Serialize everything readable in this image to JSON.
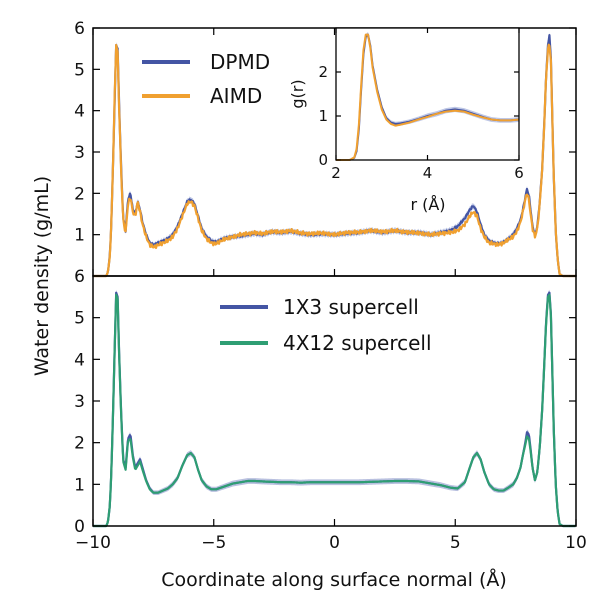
{
  "figure": {
    "xlabel": "Coordinate along surface normal (Å)",
    "ylabel": "Water density (g/mL)"
  },
  "chart_data": [
    {
      "type": "line",
      "panel": "top",
      "xlim": [
        -10,
        10
      ],
      "ylim": [
        0,
        6
      ],
      "x_ticks": [
        -10,
        -5,
        0,
        5,
        10
      ],
      "x_tick_labels": [],
      "y_ticks": [
        1,
        2,
        3,
        4,
        5,
        6
      ],
      "y_tick_labels": [
        "1",
        "2",
        "3",
        "4",
        "5",
        "6"
      ],
      "legend_position": "upper-left",
      "series": [
        {
          "name": "DPMD",
          "color": "#4455a4",
          "band_color": "#8a9ad2",
          "noise": 0.03,
          "x": [
            -10,
            -9.45,
            -9.38,
            -9.3,
            -9.24,
            -9.18,
            -9.1,
            -9.04,
            -8.98,
            -8.92,
            -8.84,
            -8.75,
            -8.65,
            -8.55,
            -8.45,
            -8.35,
            -8.25,
            -8.15,
            -8.05,
            -7.95,
            -7.8,
            -7.65,
            -7.5,
            -7.3,
            -7.1,
            -6.9,
            -6.7,
            -6.5,
            -6.3,
            -6.1,
            -5.95,
            -5.8,
            -5.65,
            -5.5,
            -5.3,
            -5.1,
            -4.9,
            -4.7,
            -4.5,
            -4.2,
            -3.9,
            -3.6,
            -3.3,
            -3.0,
            -2.6,
            -2.2,
            -1.8,
            -1.4,
            -1.0,
            -0.5,
            0,
            0.5,
            1.0,
            1.5,
            2.0,
            2.5,
            3.0,
            3.5,
            4.0,
            4.4,
            4.8,
            5.1,
            5.4,
            5.6,
            5.75,
            5.9,
            6.05,
            6.2,
            6.4,
            6.6,
            6.8,
            7.0,
            7.2,
            7.4,
            7.55,
            7.7,
            7.8,
            7.9,
            7.97,
            8.05,
            8.12,
            8.2,
            8.3,
            8.4,
            8.5,
            8.6,
            8.68,
            8.76,
            8.84,
            8.9,
            8.96,
            9.02,
            9.08,
            9.16,
            9.24,
            9.32,
            9.45,
            10
          ],
          "y": [
            0,
            0,
            0.1,
            0.5,
            1.3,
            2.5,
            4.3,
            5.6,
            5.5,
            4.2,
            2.7,
            1.4,
            1.1,
            1.85,
            2.0,
            1.6,
            1.5,
            1.8,
            1.6,
            1.3,
            1.0,
            0.8,
            0.75,
            0.8,
            0.85,
            0.9,
            1.0,
            1.2,
            1.5,
            1.8,
            1.85,
            1.75,
            1.45,
            1.15,
            0.95,
            0.85,
            0.82,
            0.88,
            0.92,
            0.95,
            0.97,
            1.0,
            1.03,
            1.0,
            1.07,
            1.05,
            1.08,
            1.03,
            1.0,
            1.02,
            1.0,
            1.03,
            1.05,
            1.1,
            1.05,
            1.1,
            1.05,
            1.05,
            1.0,
            1.05,
            1.1,
            1.2,
            1.4,
            1.6,
            1.7,
            1.55,
            1.25,
            1.0,
            0.85,
            0.8,
            0.78,
            0.82,
            0.9,
            1.0,
            1.15,
            1.35,
            1.6,
            1.9,
            2.1,
            1.95,
            1.6,
            1.2,
            1.0,
            1.2,
            1.8,
            2.6,
            3.6,
            4.8,
            5.6,
            5.8,
            5.3,
            3.8,
            2.4,
            1.1,
            0.4,
            0.05,
            0,
            0
          ]
        },
        {
          "name": "AIMD",
          "color": "#f0a030",
          "noise": 0.05,
          "x": [
            -10,
            -9.45,
            -9.38,
            -9.3,
            -9.24,
            -9.18,
            -9.1,
            -9.04,
            -8.98,
            -8.92,
            -8.84,
            -8.75,
            -8.65,
            -8.55,
            -8.45,
            -8.35,
            -8.25,
            -8.15,
            -8.05,
            -7.95,
            -7.8,
            -7.65,
            -7.5,
            -7.3,
            -7.1,
            -6.9,
            -6.7,
            -6.5,
            -6.3,
            -6.1,
            -5.95,
            -5.8,
            -5.65,
            -5.5,
            -5.3,
            -5.1,
            -4.9,
            -4.7,
            -4.5,
            -4.2,
            -3.9,
            -3.6,
            -3.3,
            -3.0,
            -2.6,
            -2.2,
            -1.8,
            -1.4,
            -1.0,
            -0.5,
            0,
            0.5,
            1.0,
            1.5,
            2.0,
            2.5,
            3.0,
            3.5,
            4.0,
            4.4,
            4.8,
            5.1,
            5.4,
            5.6,
            5.75,
            5.9,
            6.05,
            6.2,
            6.4,
            6.6,
            6.8,
            7.0,
            7.2,
            7.4,
            7.55,
            7.7,
            7.8,
            7.9,
            7.97,
            8.05,
            8.12,
            8.2,
            8.3,
            8.4,
            8.5,
            8.6,
            8.68,
            8.76,
            8.84,
            8.9,
            8.96,
            9.02,
            9.08,
            9.16,
            9.24,
            9.32,
            9.45,
            10
          ],
          "y": [
            0,
            0,
            0.1,
            0.5,
            1.3,
            2.5,
            4.4,
            5.6,
            5.4,
            4.1,
            2.6,
            1.35,
            1.05,
            1.75,
            1.9,
            1.55,
            1.45,
            1.8,
            1.55,
            1.25,
            0.95,
            0.75,
            0.7,
            0.75,
            0.8,
            0.85,
            0.95,
            1.15,
            1.45,
            1.75,
            1.8,
            1.7,
            1.4,
            1.1,
            0.9,
            0.8,
            0.78,
            0.85,
            0.9,
            0.95,
            1.0,
            1.02,
            1.05,
            1.02,
            1.08,
            1.06,
            1.1,
            1.04,
            1.02,
            1.04,
            1.0,
            1.05,
            1.06,
            1.1,
            1.07,
            1.1,
            1.06,
            1.04,
            1.0,
            1.03,
            1.05,
            1.1,
            1.25,
            1.45,
            1.55,
            1.45,
            1.15,
            0.95,
            0.8,
            0.78,
            0.76,
            0.8,
            0.88,
            0.95,
            1.08,
            1.3,
            1.55,
            1.85,
            2.0,
            1.85,
            1.5,
            1.15,
            0.95,
            1.15,
            1.75,
            2.6,
            3.6,
            4.8,
            5.5,
            5.6,
            5.2,
            3.8,
            2.4,
            1.1,
            0.4,
            0.05,
            0,
            0
          ]
        }
      ]
    },
    {
      "type": "line",
      "panel": "inset",
      "xlabel": "r (Å)",
      "ylabel": "g(r)",
      "xlim": [
        2,
        6
      ],
      "ylim": [
        0,
        3
      ],
      "x_ticks": [
        2,
        4,
        6
      ],
      "x_tick_labels": [
        "2",
        "4",
        "6"
      ],
      "y_ticks": [
        0,
        1,
        2
      ],
      "y_tick_labels": [
        "0",
        "1",
        "2"
      ],
      "series": [
        {
          "ref": "DPMD",
          "color": "#4455a4",
          "band_color": "#8a9ad2",
          "x": [
            2.0,
            2.3,
            2.4,
            2.45,
            2.5,
            2.55,
            2.6,
            2.65,
            2.7,
            2.75,
            2.8,
            2.9,
            3.0,
            3.1,
            3.2,
            3.3,
            3.4,
            3.6,
            3.8,
            4.0,
            4.2,
            4.4,
            4.6,
            4.8,
            5.0,
            5.2,
            5.4,
            5.6,
            5.8,
            6.0
          ],
          "y": [
            0,
            0,
            0.05,
            0.2,
            0.7,
            1.6,
            2.4,
            2.8,
            2.85,
            2.6,
            2.15,
            1.6,
            1.2,
            0.95,
            0.85,
            0.82,
            0.83,
            0.87,
            0.93,
            1.0,
            1.05,
            1.12,
            1.15,
            1.12,
            1.05,
            0.98,
            0.92,
            0.9,
            0.9,
            0.92
          ]
        },
        {
          "ref": "AIMD",
          "color": "#f0a030",
          "x": [
            2.0,
            2.3,
            2.4,
            2.45,
            2.5,
            2.55,
            2.6,
            2.65,
            2.7,
            2.75,
            2.8,
            2.9,
            3.0,
            3.1,
            3.2,
            3.3,
            3.4,
            3.6,
            3.8,
            4.0,
            4.2,
            4.4,
            4.6,
            4.8,
            5.0,
            5.2,
            5.4,
            5.6,
            5.8,
            6.0
          ],
          "y": [
            0,
            0,
            0.06,
            0.25,
            0.8,
            1.7,
            2.5,
            2.85,
            2.85,
            2.55,
            2.1,
            1.55,
            1.15,
            0.92,
            0.82,
            0.78,
            0.8,
            0.85,
            0.92,
            0.98,
            1.05,
            1.1,
            1.12,
            1.1,
            1.03,
            0.97,
            0.92,
            0.9,
            0.9,
            0.92
          ]
        }
      ]
    },
    {
      "type": "line",
      "panel": "bottom",
      "xlim": [
        -10,
        10
      ],
      "ylim": [
        0,
        6
      ],
      "x_ticks": [
        -10,
        -5,
        0,
        5,
        10
      ],
      "x_tick_labels": [
        "−10",
        "−5",
        "0",
        "5",
        "10"
      ],
      "y_ticks": [
        0,
        1,
        2,
        3,
        4,
        5,
        6
      ],
      "y_tick_labels": [
        "0",
        "1",
        "2",
        "3",
        "4",
        "5",
        "6"
      ],
      "legend_position": "upper-center",
      "series": [
        {
          "name": "1X3 supercell",
          "color": "#4455a4",
          "band_color": "#7f8cc4",
          "x": [
            -10,
            -9.45,
            -9.38,
            -9.3,
            -9.24,
            -9.18,
            -9.1,
            -9.04,
            -8.98,
            -8.92,
            -8.84,
            -8.75,
            -8.65,
            -8.55,
            -8.45,
            -8.35,
            -8.25,
            -8.15,
            -8.05,
            -7.95,
            -7.8,
            -7.65,
            -7.5,
            -7.3,
            -7.1,
            -6.9,
            -6.7,
            -6.5,
            -6.3,
            -6.1,
            -5.95,
            -5.8,
            -5.65,
            -5.5,
            -5.3,
            -5.1,
            -4.9,
            -4.7,
            -4.5,
            -4.2,
            -3.9,
            -3.6,
            -3.3,
            -3.0,
            -2.6,
            -2.2,
            -1.8,
            -1.4,
            -1.0,
            -0.5,
            0,
            0.5,
            1.0,
            1.5,
            2.0,
            2.5,
            3.0,
            3.5,
            4.0,
            4.4,
            4.8,
            5.1,
            5.4,
            5.6,
            5.75,
            5.9,
            6.05,
            6.2,
            6.4,
            6.6,
            6.8,
            7.0,
            7.2,
            7.4,
            7.55,
            7.7,
            7.8,
            7.9,
            7.97,
            8.05,
            8.12,
            8.2,
            8.3,
            8.4,
            8.5,
            8.6,
            8.68,
            8.76,
            8.84,
            8.9,
            8.96,
            9.02,
            9.08,
            9.16,
            9.24,
            9.32,
            9.45,
            10
          ],
          "y": [
            0,
            0,
            0.1,
            0.5,
            1.3,
            2.5,
            4.3,
            5.6,
            5.5,
            4.2,
            2.8,
            1.6,
            1.4,
            2.1,
            2.2,
            1.7,
            1.4,
            1.5,
            1.6,
            1.4,
            1.1,
            0.9,
            0.8,
            0.8,
            0.85,
            0.9,
            1.0,
            1.15,
            1.45,
            1.7,
            1.75,
            1.65,
            1.35,
            1.1,
            0.95,
            0.88,
            0.88,
            0.92,
            0.96,
            1.02,
            1.05,
            1.08,
            1.08,
            1.07,
            1.06,
            1.05,
            1.05,
            1.04,
            1.05,
            1.05,
            1.05,
            1.05,
            1.05,
            1.06,
            1.07,
            1.08,
            1.08,
            1.07,
            1.02,
            0.98,
            0.92,
            0.9,
            1.05,
            1.4,
            1.65,
            1.75,
            1.6,
            1.3,
            1.0,
            0.88,
            0.85,
            0.85,
            0.92,
            1.0,
            1.15,
            1.4,
            1.7,
            2.0,
            2.25,
            2.2,
            1.85,
            1.4,
            1.1,
            1.3,
            1.9,
            2.8,
            3.8,
            4.9,
            5.55,
            5.6,
            5.1,
            3.7,
            2.3,
            1.0,
            0.35,
            0.05,
            0,
            0
          ]
        },
        {
          "name": "4X12 supercell",
          "color": "#2e9e73",
          "x": [
            -10,
            -9.45,
            -9.38,
            -9.3,
            -9.24,
            -9.18,
            -9.1,
            -9.04,
            -8.98,
            -8.92,
            -8.84,
            -8.75,
            -8.65,
            -8.55,
            -8.45,
            -8.35,
            -8.25,
            -8.15,
            -8.05,
            -7.95,
            -7.8,
            -7.65,
            -7.5,
            -7.3,
            -7.1,
            -6.9,
            -6.7,
            -6.5,
            -6.3,
            -6.1,
            -5.95,
            -5.8,
            -5.65,
            -5.5,
            -5.3,
            -5.1,
            -4.9,
            -4.7,
            -4.5,
            -4.2,
            -3.9,
            -3.6,
            -3.3,
            -3.0,
            -2.6,
            -2.2,
            -1.8,
            -1.4,
            -1.0,
            -0.5,
            0,
            0.5,
            1.0,
            1.5,
            2.0,
            2.5,
            3.0,
            3.5,
            4.0,
            4.4,
            4.8,
            5.1,
            5.4,
            5.6,
            5.75,
            5.9,
            6.05,
            6.2,
            6.4,
            6.6,
            6.8,
            7.0,
            7.2,
            7.4,
            7.55,
            7.7,
            7.8,
            7.9,
            7.97,
            8.05,
            8.12,
            8.2,
            8.3,
            8.4,
            8.5,
            8.6,
            8.68,
            8.76,
            8.84,
            8.9,
            8.96,
            9.02,
            9.08,
            9.16,
            9.24,
            9.32,
            9.45,
            10
          ],
          "y": [
            0,
            0,
            0.1,
            0.5,
            1.3,
            2.5,
            4.3,
            5.55,
            5.45,
            4.15,
            2.75,
            1.55,
            1.35,
            2.05,
            2.1,
            1.65,
            1.35,
            1.45,
            1.55,
            1.35,
            1.08,
            0.88,
            0.8,
            0.8,
            0.85,
            0.9,
            1.0,
            1.15,
            1.45,
            1.7,
            1.75,
            1.65,
            1.35,
            1.1,
            0.95,
            0.88,
            0.88,
            0.92,
            0.96,
            1.02,
            1.05,
            1.08,
            1.08,
            1.07,
            1.06,
            1.05,
            1.05,
            1.04,
            1.05,
            1.05,
            1.05,
            1.05,
            1.05,
            1.06,
            1.07,
            1.08,
            1.08,
            1.07,
            1.02,
            0.98,
            0.92,
            0.9,
            1.05,
            1.4,
            1.65,
            1.75,
            1.6,
            1.3,
            1.0,
            0.88,
            0.85,
            0.85,
            0.92,
            1.0,
            1.15,
            1.4,
            1.7,
            1.95,
            2.15,
            2.1,
            1.8,
            1.4,
            1.1,
            1.3,
            1.9,
            2.8,
            3.8,
            4.85,
            5.5,
            5.55,
            5.05,
            3.7,
            2.3,
            1.0,
            0.35,
            0.05,
            0,
            0
          ]
        }
      ]
    }
  ]
}
